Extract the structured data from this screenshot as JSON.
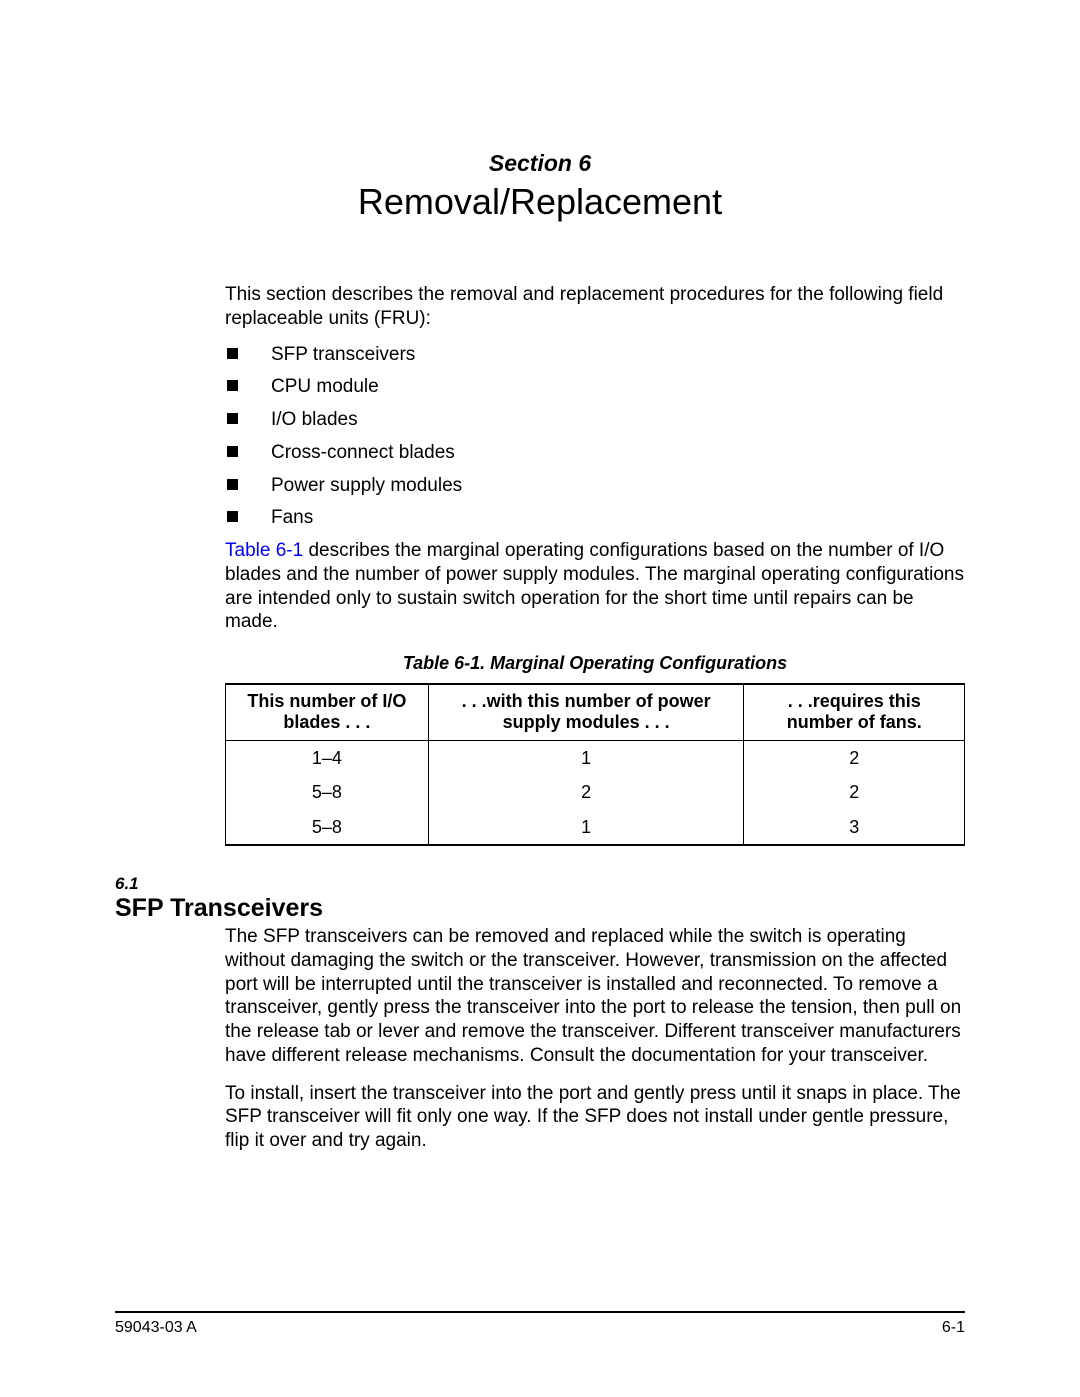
{
  "header": {
    "section_label": "Section 6",
    "title": "Removal/Replacement"
  },
  "intro": {
    "paragraph": "This section describes the removal and replacement procedures for the following field replaceable units (FRU):",
    "bullets": [
      "SFP transceivers",
      "CPU module",
      "I/O blades",
      "Cross-connect blades",
      "Power supply modules",
      "Fans"
    ],
    "after_list_link": "Table 6-1",
    "after_list_rest": " describes the marginal operating configurations based on the number of I/O blades and the number of power supply modules. The marginal operating configurations are intended only to sustain switch operation for the short time until repairs can be made."
  },
  "table": {
    "caption": "Table 6-1. Marginal Operating Configurations",
    "headers": {
      "col1": "This number of I/O blades . . .",
      "col2": ". . .with this number of power supply modules . . .",
      "col3": ". . .requires this number of fans."
    },
    "rows": [
      {
        "c1": "1–4",
        "c2": "1",
        "c3": "2"
      },
      {
        "c1": "5–8",
        "c2": "2",
        "c3": "2"
      },
      {
        "c1": "5–8",
        "c2": "1",
        "c3": "3"
      }
    ]
  },
  "subsection": {
    "number": "6.1",
    "title": "SFP Transceivers",
    "para1": "The SFP transceivers can be removed and replaced while the switch is operating without damaging the switch or the transceiver. However, transmission on the affected port will be interrupted until the transceiver is installed and reconnected. To remove a transceiver, gently press the transceiver into the port to release the tension, then pull on the release tab or lever and remove the transceiver. Different transceiver manufacturers have different release mechanisms. Consult the documentation for your transceiver.",
    "para2": "To install, insert the transceiver into the port and gently press until it snaps in place. The SFP transceiver will fit only one way. If the SFP does not install under gentle pressure, flip it over and try again."
  },
  "footer": {
    "left": "59043-03  A",
    "right": "6-1"
  }
}
